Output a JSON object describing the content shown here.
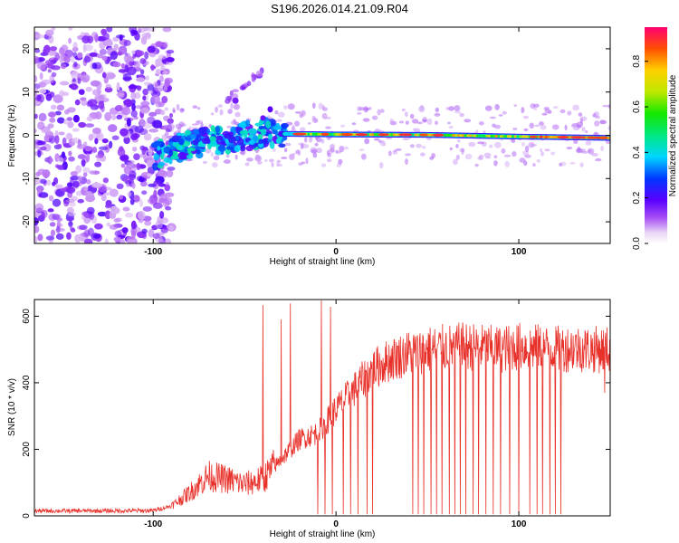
{
  "title": "S196.2026.014.21.09.R04",
  "chart_data": [
    {
      "type": "heatmap",
      "xlabel": "Height of straight line (km)",
      "ylabel": "Frequency (Hz)",
      "xlim": [
        -165,
        150
      ],
      "ylim": [
        -25,
        25
      ],
      "xticks": [
        -100,
        0,
        100
      ],
      "yticks": [
        -20,
        -10,
        0,
        10,
        20
      ],
      "grid": false,
      "colorbar": {
        "label": "Normalized spectral amplitude",
        "range": [
          0,
          0.95
        ],
        "ticks": [
          0.0,
          0.2,
          0.4,
          0.6,
          0.8
        ],
        "tick_labels": [
          "0.0",
          "0.2",
          "0.4",
          "0.6",
          "0.8"
        ],
        "placement": "right"
      },
      "features": {
        "noise_region_x": [
          -165,
          -90
        ],
        "ridge": {
          "x": [
            -100,
            -80,
            -60,
            -40,
            -20,
            0,
            50,
            100,
            150
          ],
          "y": [
            -5,
            -2,
            -0.8,
            0.4,
            0.3,
            0.2,
            0.1,
            -0.3,
            -0.6
          ]
        },
        "diagonal_streak": {
          "x": [
            -60,
            -40
          ],
          "y": [
            8,
            15
          ]
        }
      }
    },
    {
      "type": "line",
      "xlabel": "Height of straight line (km)",
      "ylabel": "SNR (10 * v/v)",
      "xlim": [
        -165,
        150
      ],
      "ylim": [
        0,
        650
      ],
      "xticks": [
        -100,
        0,
        100
      ],
      "yticks": [
        0,
        200,
        400,
        600
      ],
      "color": "#e8312a",
      "grid": false,
      "series": [
        {
          "x": [
            -165,
            -140,
            -120,
            -100,
            -90,
            -80,
            -70,
            -60,
            -50,
            -40,
            -30,
            -20,
            -10,
            0,
            10,
            20,
            30,
            40,
            50,
            60,
            70,
            80,
            90,
            100,
            110,
            120,
            130,
            140,
            150
          ],
          "values": [
            15,
            15,
            15,
            16,
            30,
            70,
            120,
            110,
            95,
            110,
            170,
            230,
            250,
            320,
            380,
            440,
            470,
            490,
            500,
            505,
            510,
            505,
            500,
            510,
            505,
            500,
            505,
            500,
            500
          ]
        }
      ],
      "spikes_x": [
        -40,
        -30,
        -25,
        -8,
        -3
      ],
      "dropouts_x": [
        -10,
        -6,
        -2,
        4,
        8,
        12,
        17,
        20,
        42,
        45,
        48,
        52,
        55,
        58,
        62,
        65,
        68,
        71,
        75,
        78,
        82,
        86,
        90,
        95,
        100,
        106,
        110,
        113,
        117,
        120,
        123
      ]
    }
  ]
}
